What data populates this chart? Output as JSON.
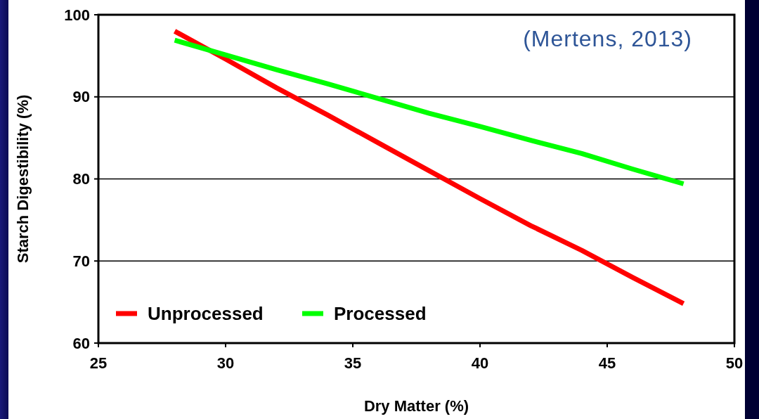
{
  "chart_data": {
    "type": "line",
    "xlabel": "Dry Matter (%)",
    "ylabel": "Starch Digestibility (%)",
    "annotations": [
      "(Mertens, 2013)"
    ],
    "x": [
      28,
      30,
      32,
      34,
      36,
      38,
      40,
      42,
      44,
      46,
      48
    ],
    "series": [
      {
        "name": "Unprocessed",
        "color": "#ff0000",
        "values": [
          98,
          94.6,
          91.1,
          87.8,
          84.4,
          81.0,
          77.6,
          74.3,
          71.3,
          68.0,
          64.8
        ]
      },
      {
        "name": "Processed",
        "color": "#00ff00",
        "values": [
          96.9,
          95.1,
          93.3,
          91.6,
          89.8,
          88.0,
          86.4,
          84.7,
          83.1,
          81.2,
          79.4
        ]
      }
    ],
    "xlim": [
      25,
      50
    ],
    "xticks": [
      25,
      30,
      35,
      40,
      45,
      50
    ],
    "ylim": [
      60,
      100
    ],
    "yticks": [
      60,
      70,
      80,
      90,
      100
    ],
    "grid": "y",
    "legend": "bottom left",
    "marker": "none",
    "line_style": "solid"
  }
}
